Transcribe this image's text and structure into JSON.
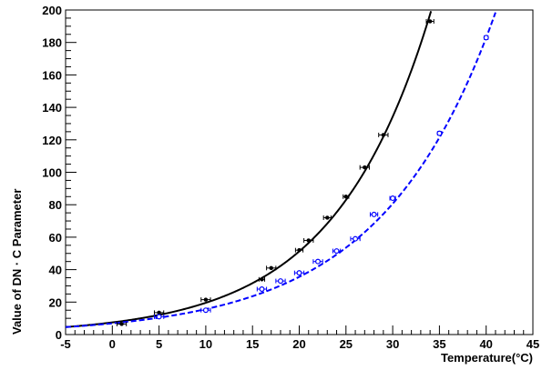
{
  "chart_data": {
    "type": "scatter",
    "xlabel": "Temperature(°C)",
    "ylabel": "Value of DN · C Parameter",
    "xlim": [
      -5,
      45
    ],
    "ylim": [
      0,
      200
    ],
    "x_ticks": [
      -5,
      0,
      5,
      10,
      15,
      20,
      25,
      30,
      35,
      40,
      45
    ],
    "y_ticks": [
      0,
      20,
      40,
      60,
      80,
      100,
      120,
      140,
      160,
      180,
      200
    ],
    "grid": false,
    "legend": "none",
    "series": [
      {
        "color": "#000000",
        "marker": "filled-circle",
        "line_style": "solid",
        "points": [
          {
            "x": 1,
            "y": 6.5,
            "xerr": 0.5
          },
          {
            "x": 5,
            "y": 13.5,
            "xerr": 0.5
          },
          {
            "x": 10,
            "y": 21.5,
            "xerr": 0.5
          },
          {
            "x": 16,
            "y": 34,
            "xerr": 0.3
          },
          {
            "x": 17,
            "y": 41,
            "xerr": 0.5
          },
          {
            "x": 20,
            "y": 52,
            "xerr": 0.4
          },
          {
            "x": 21,
            "y": 58,
            "xerr": 0.5
          },
          {
            "x": 23,
            "y": 72,
            "xerr": 0.4
          },
          {
            "x": 25,
            "y": 85,
            "xerr": 0.3
          },
          {
            "x": 27,
            "y": 103,
            "xerr": 0.5
          },
          {
            "x": 29,
            "y": 123,
            "xerr": 0.5
          },
          {
            "x": 34,
            "y": 193,
            "xerr": 0.4
          }
        ],
        "fit": {
          "form": "exponential",
          "a": 7.47,
          "b": 0.0963
        }
      },
      {
        "color": "#0000ff",
        "marker": "open-circle",
        "line_style": "dashed",
        "points": [
          {
            "x": 5,
            "y": 11,
            "xerr": 0.5
          },
          {
            "x": 10,
            "y": 15,
            "xerr": 0.5
          },
          {
            "x": 16,
            "y": 28,
            "xerr": 0.5
          },
          {
            "x": 18,
            "y": 33,
            "xerr": 0.5
          },
          {
            "x": 20,
            "y": 38,
            "xerr": 0.5
          },
          {
            "x": 22,
            "y": 45,
            "xerr": 0.5
          },
          {
            "x": 24,
            "y": 51.5,
            "xerr": 0.4
          },
          {
            "x": 26,
            "y": 59,
            "xerr": 0.5
          },
          {
            "x": 28,
            "y": 74,
            "xerr": 0.4
          },
          {
            "x": 30,
            "y": 84,
            "xerr": 0.3
          },
          {
            "x": 35,
            "y": 124,
            "xerr": 0.2
          },
          {
            "x": 40,
            "y": 183,
            "xerr": 0.2
          }
        ],
        "fit": {
          "form": "exponential",
          "a": 6.91,
          "b": 0.0819
        }
      }
    ]
  }
}
